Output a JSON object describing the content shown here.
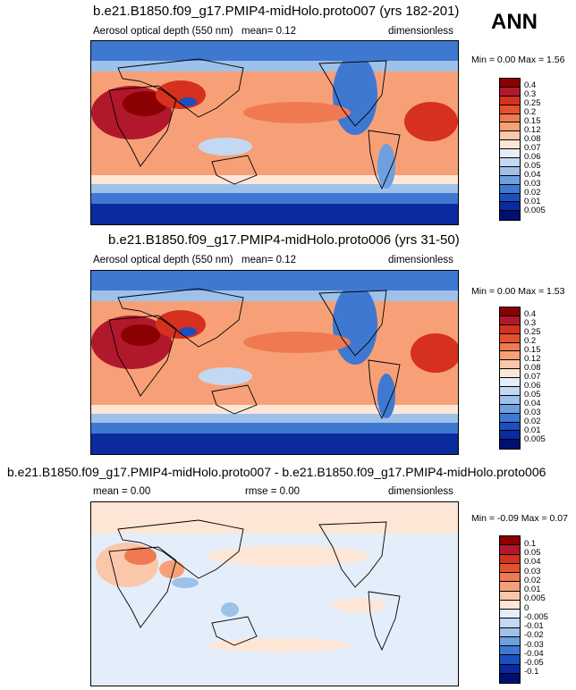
{
  "season": "ANN",
  "panels": [
    {
      "title": "b.e21.B1850.f09_g17.PMIP4-midHolo.proto007 (yrs 182-201)",
      "variable": "Aerosol optical depth (550 nm)",
      "stat1": "mean=  0.12",
      "units": "dimensionless",
      "minmax": "Min =  0.00 Max =  1.56",
      "levels": [
        "0.4",
        "0.3",
        "0.25",
        "0.2",
        "0.15",
        "0.12",
        "0.08",
        "0.07",
        "0.06",
        "0.05",
        "0.04",
        "0.03",
        "0.02",
        "0.01",
        "0.005"
      ],
      "colors": [
        "#8b0000",
        "#b2182b",
        "#d6301e",
        "#e3522f",
        "#ef7a52",
        "#f7a077",
        "#fbc7aa",
        "#fde6d6",
        "#e4eefa",
        "#c3d8f2",
        "#9ec1ea",
        "#6e9fde",
        "#3f78d0",
        "#1a4fc0",
        "#0a2a9e",
        "#001070"
      ]
    },
    {
      "title": "b.e21.B1850.f09_g17.PMIP4-midHolo.proto006 (yrs 31-50)",
      "variable": "Aerosol optical depth (550 nm)",
      "stat1": "mean=  0.12",
      "units": "dimensionless",
      "minmax": "Min =  0.00 Max =  1.53",
      "levels": [
        "0.4",
        "0.3",
        "0.25",
        "0.2",
        "0.15",
        "0.12",
        "0.08",
        "0.07",
        "0.06",
        "0.05",
        "0.04",
        "0.03",
        "0.02",
        "0.01",
        "0.005"
      ],
      "colors": [
        "#8b0000",
        "#b2182b",
        "#d6301e",
        "#e3522f",
        "#ef7a52",
        "#f7a077",
        "#fbc7aa",
        "#fde6d6",
        "#e4eefa",
        "#c3d8f2",
        "#9ec1ea",
        "#6e9fde",
        "#3f78d0",
        "#1a4fc0",
        "#0a2a9e",
        "#001070"
      ]
    },
    {
      "title": "b.e21.B1850.f09_g17.PMIP4-midHolo.proto007 - b.e21.B1850.f09_g17.PMIP4-midHolo.proto006",
      "stat1": "mean =  0.00",
      "stat2": "rmse =  0.00",
      "units": "dimensionless",
      "minmax": "Min = -0.09 Max =  0.07",
      "levels": [
        "0.1",
        "0.05",
        "0.04",
        "0.03",
        "0.02",
        "0.01",
        "0.005",
        "0",
        "-0.005",
        "-0.01",
        "-0.02",
        "-0.03",
        "-0.04",
        "-0.05",
        "-0.1"
      ],
      "colors": [
        "#8b0000",
        "#b2182b",
        "#d6301e",
        "#e3522f",
        "#ef7a52",
        "#f7a077",
        "#fbc7aa",
        "#fde6d6",
        "#e4eefa",
        "#c3d8f2",
        "#9ec1ea",
        "#6e9fde",
        "#3f78d0",
        "#1a4fc0",
        "#0a2a9e",
        "#001070"
      ]
    }
  ]
}
